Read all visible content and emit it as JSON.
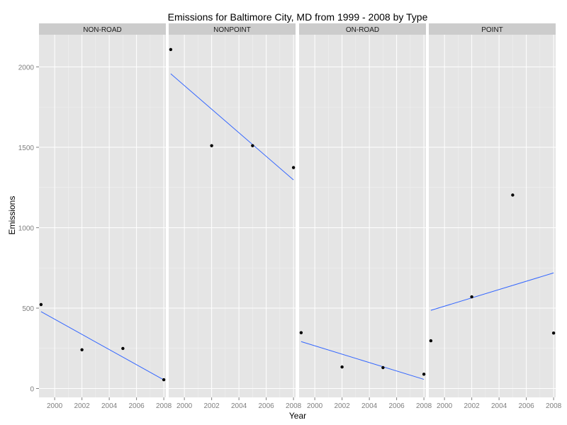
{
  "chart_data": {
    "type": "scatter",
    "title": "Emissions for Baltimore City, MD from 1999 - 2008 by Type",
    "xlabel": "Year",
    "ylabel": "Emissions",
    "xlim": [
      1998.85,
      2008.15
    ],
    "ylim": [
      -55,
      2200
    ],
    "xticks": [
      2000,
      2002,
      2004,
      2006,
      2008
    ],
    "yticks": [
      0,
      500,
      1000,
      1500,
      2000
    ],
    "grid": true,
    "colors": {
      "panel_background": "#e5e5e5",
      "grid_major": "#ffffff",
      "grid_minor": "#f2f2f2",
      "strip_background": "#cccccc",
      "point": "#000000",
      "trend_line": "#3366ff",
      "tick_label": "#7f7f7f"
    },
    "facets": [
      {
        "label": "NON-ROAD",
        "points": [
          {
            "x": 1999,
            "y": 522
          },
          {
            "x": 2002,
            "y": 241
          },
          {
            "x": 2005,
            "y": 249
          },
          {
            "x": 2008,
            "y": 55
          }
        ],
        "trend": [
          {
            "x": 1999,
            "y": 478
          },
          {
            "x": 2008,
            "y": 54
          }
        ]
      },
      {
        "label": "NONPOINT",
        "points": [
          {
            "x": 1999,
            "y": 2108
          },
          {
            "x": 2002,
            "y": 1510
          },
          {
            "x": 2005,
            "y": 1510
          },
          {
            "x": 2008,
            "y": 1374
          }
        ],
        "trend": [
          {
            "x": 1999,
            "y": 1957
          },
          {
            "x": 2008,
            "y": 1297
          }
        ]
      },
      {
        "label": "ON-ROAD",
        "points": [
          {
            "x": 1999,
            "y": 347
          },
          {
            "x": 2002,
            "y": 134
          },
          {
            "x": 2005,
            "y": 130
          },
          {
            "x": 2008,
            "y": 89
          }
        ],
        "trend": [
          {
            "x": 1999,
            "y": 292
          },
          {
            "x": 2008,
            "y": 57
          }
        ]
      },
      {
        "label": "POINT",
        "points": [
          {
            "x": 1999,
            "y": 297
          },
          {
            "x": 2002,
            "y": 570
          },
          {
            "x": 2005,
            "y": 1203
          },
          {
            "x": 2008,
            "y": 345
          }
        ],
        "trend": [
          {
            "x": 1999,
            "y": 486
          },
          {
            "x": 2008,
            "y": 719
          }
        ]
      }
    ]
  }
}
